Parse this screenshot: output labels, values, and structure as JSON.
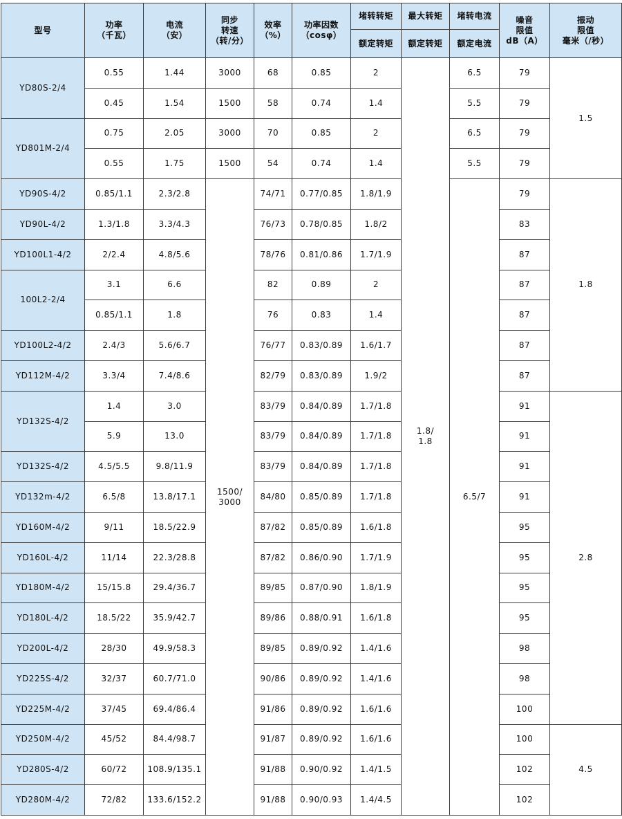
{
  "table": {
    "header": {
      "model": [
        "型号"
      ],
      "power": [
        "功率",
        "（千瓦）"
      ],
      "current": [
        "电流",
        "（安）"
      ],
      "speed": [
        "同步",
        "转速",
        "（转/分）"
      ],
      "eff": [
        "效率",
        "（%）"
      ],
      "pf": [
        "功率因数",
        "（cosφ）"
      ],
      "torque": [
        "堵转转矩"
      ],
      "maxTorque": [
        "最大转矩"
      ],
      "lockedCurrent": [
        "堵转电流"
      ],
      "noise": [
        "噪音",
        "限值",
        "dB（A）"
      ],
      "vib": [
        "振动",
        "限值",
        "毫米（/秒）"
      ],
      "torqueBase": [
        "额定转矩"
      ],
      "maxTorqueBase": [
        "额定转矩"
      ],
      "lockedCurrentBase": [
        "额定电流"
      ]
    },
    "rows": [
      {
        "model": [
          "YD80S-2/4"
        ],
        "power": [
          "0.55"
        ],
        "current": [
          "1.44"
        ],
        "speed": [
          "3000"
        ],
        "eff": [
          "68"
        ],
        "pf": [
          "0.85"
        ],
        "torque": [
          "2"
        ],
        "maxTorque": [
          "1.8/",
          "1.8"
        ],
        "lockedCurrent": [
          "6.5"
        ],
        "noise": [
          "79"
        ],
        "vib": [
          "1.5"
        ]
      },
      {
        "power": [
          "0.45"
        ],
        "current": [
          "1.54"
        ],
        "speed": [
          "1500"
        ],
        "eff": [
          "58"
        ],
        "pf": [
          "0.74"
        ],
        "torque": [
          "1.4"
        ],
        "lockedCurrent": [
          "5.5"
        ],
        "noise": [
          "79"
        ]
      },
      {
        "model": [
          "YD801M-2/4"
        ],
        "power": [
          "0.75"
        ],
        "current": [
          "2.05"
        ],
        "speed": [
          "3000"
        ],
        "eff": [
          "70"
        ],
        "pf": [
          "0.85"
        ],
        "torque": [
          "2"
        ],
        "lockedCurrent": [
          "6.5"
        ],
        "noise": [
          "79"
        ]
      },
      {
        "power": [
          "0.55"
        ],
        "current": [
          "1.75"
        ],
        "speed": [
          "1500"
        ],
        "eff": [
          "54"
        ],
        "pf": [
          "0.74"
        ],
        "torque": [
          "1.4"
        ],
        "lockedCurrent": [
          "5.5"
        ],
        "noise": [
          "79"
        ]
      },
      {
        "model": [
          "YD90S-4/2"
        ],
        "power": [
          "0.85/1.1"
        ],
        "current": [
          "2.3/2.8"
        ],
        "speed": [
          "1500/",
          "3000"
        ],
        "eff": [
          "74/71"
        ],
        "pf": [
          "0.77/0.85"
        ],
        "torque": [
          "1.8/1.9"
        ],
        "lockedCurrent": [
          "6.5/7"
        ],
        "noise": [
          "79"
        ],
        "vib": [
          "1.8"
        ]
      },
      {
        "model": [
          "YD90L-4/2"
        ],
        "power": [
          "1.3/1.8"
        ],
        "current": [
          "3.3/4.3"
        ],
        "eff": [
          "76/73"
        ],
        "pf": [
          "0.78/0.85"
        ],
        "torque": [
          "1.8/2"
        ],
        "noise": [
          "83"
        ]
      },
      {
        "model": [
          "YD100L1-4/2"
        ],
        "power": [
          "2/2.4"
        ],
        "current": [
          "4.8/5.6"
        ],
        "eff": [
          "78/76"
        ],
        "pf": [
          "0.81/0.86"
        ],
        "torque": [
          "1.7/1.9"
        ],
        "noise": [
          "87"
        ]
      },
      {
        "model": [
          "100L2-2/4"
        ],
        "power": [
          "3.1"
        ],
        "current": [
          "6.6"
        ],
        "eff": [
          "82"
        ],
        "pf": [
          "0.89"
        ],
        "torque": [
          "2"
        ],
        "noise": [
          "87"
        ]
      },
      {
        "power": [
          "0.85/1.1"
        ],
        "current": [
          "1.8"
        ],
        "eff": [
          "76"
        ],
        "pf": [
          "0.83"
        ],
        "torque": [
          "1.4"
        ],
        "noise": [
          "87"
        ]
      },
      {
        "model": [
          "YD100L2-4/2"
        ],
        "power": [
          "2.4/3"
        ],
        "current": [
          "5.6/6.7"
        ],
        "eff": [
          "76/77"
        ],
        "pf": [
          "0.83/0.89"
        ],
        "torque": [
          "1.6/1.7"
        ],
        "noise": [
          "87"
        ]
      },
      {
        "model": [
          "YD112M-4/2"
        ],
        "power": [
          "3.3/4"
        ],
        "current": [
          "7.4/8.6"
        ],
        "eff": [
          "82/79"
        ],
        "pf": [
          "0.83/0.89"
        ],
        "torque": [
          "1.9/2"
        ],
        "noise": [
          "87"
        ]
      },
      {
        "model": [
          "YD132S-4/2"
        ],
        "power": [
          "1.4"
        ],
        "current": [
          "3.0"
        ],
        "eff": [
          "83/79"
        ],
        "pf": [
          "0.84/0.89"
        ],
        "torque": [
          "1.7/1.8"
        ],
        "noise": [
          "91"
        ],
        "vib": [
          "2.8"
        ]
      },
      {
        "power": [
          "5.9"
        ],
        "current": [
          "13.0"
        ],
        "eff": [
          "83/79"
        ],
        "pf": [
          "0.84/0.89"
        ],
        "torque": [
          "1.7/1.8"
        ],
        "noise": [
          "91"
        ]
      },
      {
        "model": [
          "YD132S-4/2"
        ],
        "power": [
          "4.5/5.5"
        ],
        "current": [
          "9.8/11.9"
        ],
        "eff": [
          "83/79"
        ],
        "pf": [
          "0.84/0.89"
        ],
        "torque": [
          "1.7/1.8"
        ],
        "noise": [
          "91"
        ]
      },
      {
        "model": [
          "YD132m-4/2"
        ],
        "power": [
          "6.5/8"
        ],
        "current": [
          "13.8/17.1"
        ],
        "eff": [
          "84/80"
        ],
        "pf": [
          "0.85/0.89"
        ],
        "torque": [
          "1.7/1.8"
        ],
        "noise": [
          "91"
        ]
      },
      {
        "model": [
          "YD160M-4/2"
        ],
        "power": [
          "9/11"
        ],
        "current": [
          "18.5/22.9"
        ],
        "eff": [
          "87/82"
        ],
        "pf": [
          "0.85/0.89"
        ],
        "torque": [
          "1.6/1.8"
        ],
        "noise": [
          "95"
        ]
      },
      {
        "model": [
          "YD160L-4/2"
        ],
        "power": [
          "11/14"
        ],
        "current": [
          "22.3/28.8"
        ],
        "eff": [
          "87/82"
        ],
        "pf": [
          "0.86/0.90"
        ],
        "torque": [
          "1.7/1.9"
        ],
        "noise": [
          "95"
        ]
      },
      {
        "model": [
          "YD180M-4/2"
        ],
        "power": [
          "15/15.8"
        ],
        "current": [
          "29.4/36.7"
        ],
        "eff": [
          "89/85"
        ],
        "pf": [
          "0.87/0.90"
        ],
        "torque": [
          "1.8/1.9"
        ],
        "noise": [
          "95"
        ]
      },
      {
        "model": [
          "YD180L-4/2"
        ],
        "power": [
          "18.5/22"
        ],
        "current": [
          "35.9/42.7"
        ],
        "eff": [
          "89/86"
        ],
        "pf": [
          "0.88/0.91"
        ],
        "torque": [
          "1.6/1.8"
        ],
        "noise": [
          "95"
        ]
      },
      {
        "model": [
          "YD200L-4/2"
        ],
        "power": [
          "28/30"
        ],
        "current": [
          "49.9/58.3"
        ],
        "eff": [
          "89/85"
        ],
        "pf": [
          "0.89/0.92"
        ],
        "torque": [
          "1.4/1.6"
        ],
        "noise": [
          "98"
        ]
      },
      {
        "model": [
          "YD225S-4/2"
        ],
        "power": [
          "32/37"
        ],
        "current": [
          "60.7/71.0"
        ],
        "eff": [
          "90/86"
        ],
        "pf": [
          "0.89/0.92"
        ],
        "torque": [
          "1.4/1.6"
        ],
        "noise": [
          "98"
        ]
      },
      {
        "model": [
          "YD225M-4/2"
        ],
        "power": [
          "37/45"
        ],
        "current": [
          "69.4/86.4"
        ],
        "eff": [
          "91/86"
        ],
        "pf": [
          "0.89/0.92"
        ],
        "torque": [
          "1.6/1.6"
        ],
        "noise": [
          "100"
        ]
      },
      {
        "model": [
          "YD250M-4/2"
        ],
        "power": [
          "45/52"
        ],
        "current": [
          "84.4/98.7"
        ],
        "eff": [
          "91/87"
        ],
        "pf": [
          "0.89/0.92"
        ],
        "torque": [
          "1.6/1.6"
        ],
        "noise": [
          "100"
        ],
        "vib": [
          "4.5"
        ]
      },
      {
        "model": [
          "YD280S-4/2"
        ],
        "power": [
          "60/72"
        ],
        "current": [
          "108.9/135.1"
        ],
        "eff": [
          "91/88"
        ],
        "pf": [
          "0.90/0.92"
        ],
        "torque": [
          "1.4/1.5"
        ],
        "noise": [
          "102"
        ]
      },
      {
        "model": [
          "YD280M-4/2"
        ],
        "power": [
          "72/82"
        ],
        "current": [
          "133.6/152.2"
        ],
        "eff": [
          "91/88"
        ],
        "pf": [
          "0.90/0.93"
        ],
        "torque": [
          "1.4/4.5"
        ],
        "noise": [
          "102"
        ]
      }
    ]
  }
}
